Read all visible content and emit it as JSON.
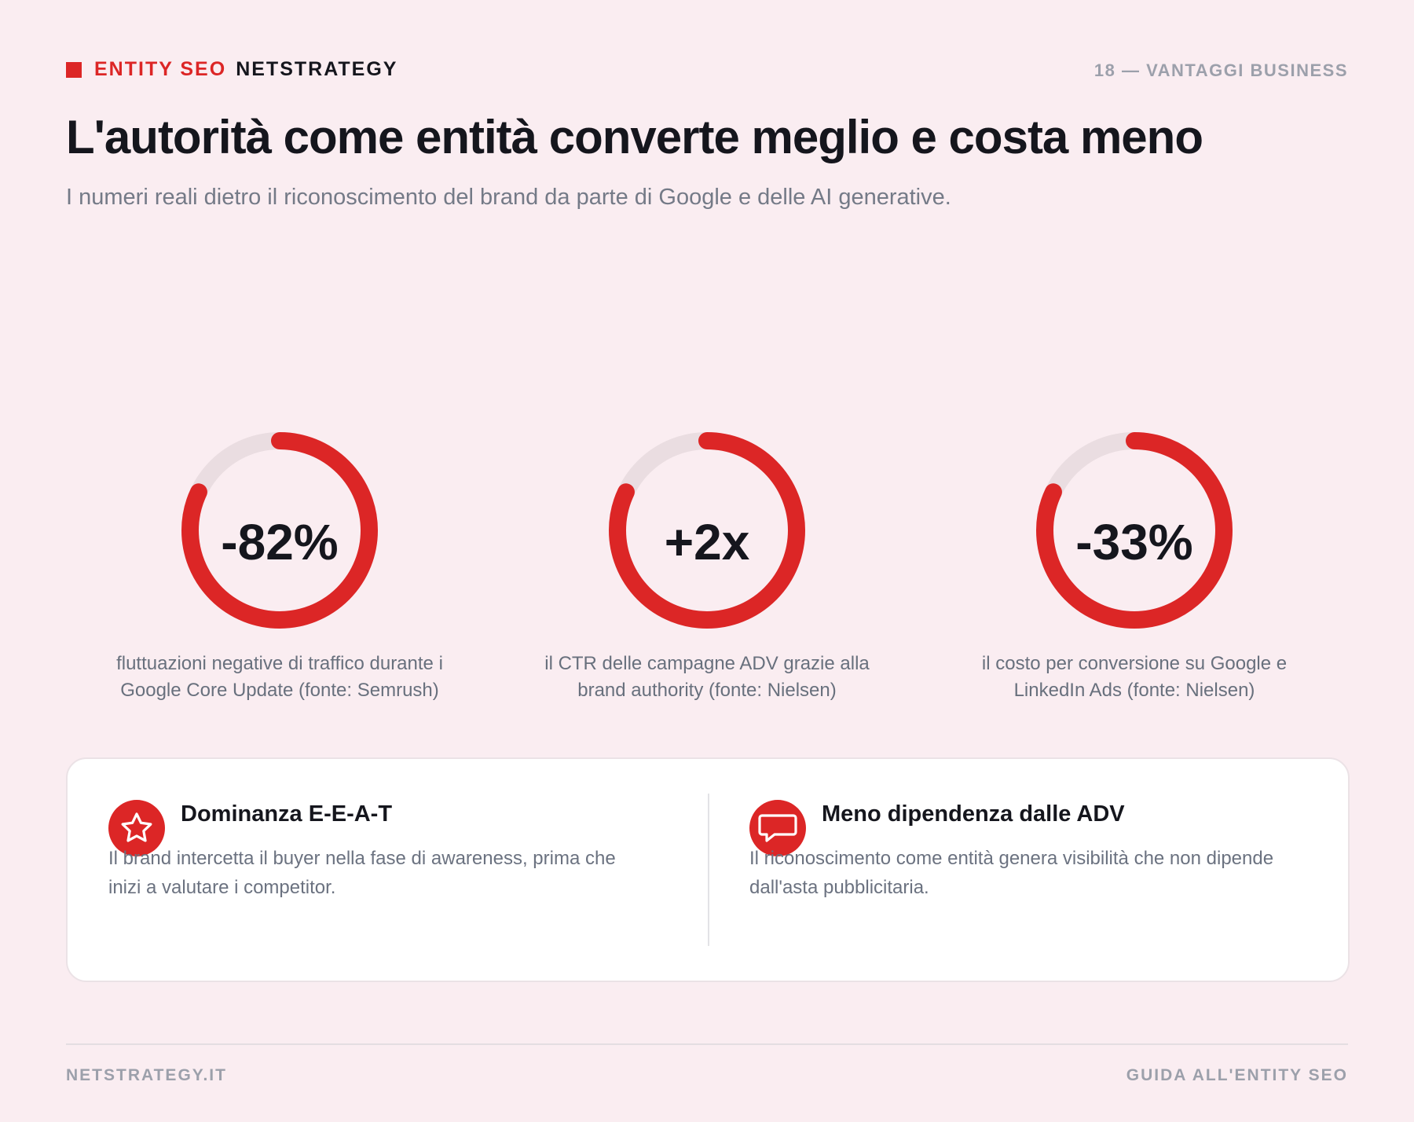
{
  "header": {
    "brand_primary": "ENTITY SEO",
    "brand_secondary": "NETSTRATEGY",
    "page_ref": "18 — VANTAGGI BUSINESS"
  },
  "title": "L'autorità come entità converte meglio e costa meno",
  "subtitle": "I numeri reali dietro il riconoscimento del brand da parte di Google e delle AI generative.",
  "stats": [
    {
      "value": "-82%",
      "description": "fluttuazioni negative di traffico durante i Google Core Update (fonte: Semrush)",
      "ring_fill": 0.82
    },
    {
      "value": "+2x",
      "description": "il CTR delle campagne ADV grazie alla brand authority (fonte: Nielsen)",
      "ring_fill": 0.82
    },
    {
      "value": "-33%",
      "description": "il costo per conversione su Google e LinkedIn Ads (fonte: Nielsen)",
      "ring_fill": 0.82
    }
  ],
  "features": [
    {
      "icon": "star-icon",
      "title": "Dominanza E-E-A-T",
      "text": "Il brand intercetta il buyer nella fase di awareness, prima che inizi a valutare i competitor."
    },
    {
      "icon": "chat-icon",
      "title": "Meno dipendenza dalle ADV",
      "text": "Il riconoscimento come entità genera visibilità che non dipende dall'asta pubblicitaria."
    }
  ],
  "footer": {
    "left": "NETSTRATEGY.IT",
    "right": "GUIDA ALL'ENTITY SEO"
  },
  "colors": {
    "accent": "#dc2626",
    "background": "#faedf1",
    "ring_track": "#eadde1",
    "text_dark": "#15161d",
    "text_muted": "#747a87"
  }
}
